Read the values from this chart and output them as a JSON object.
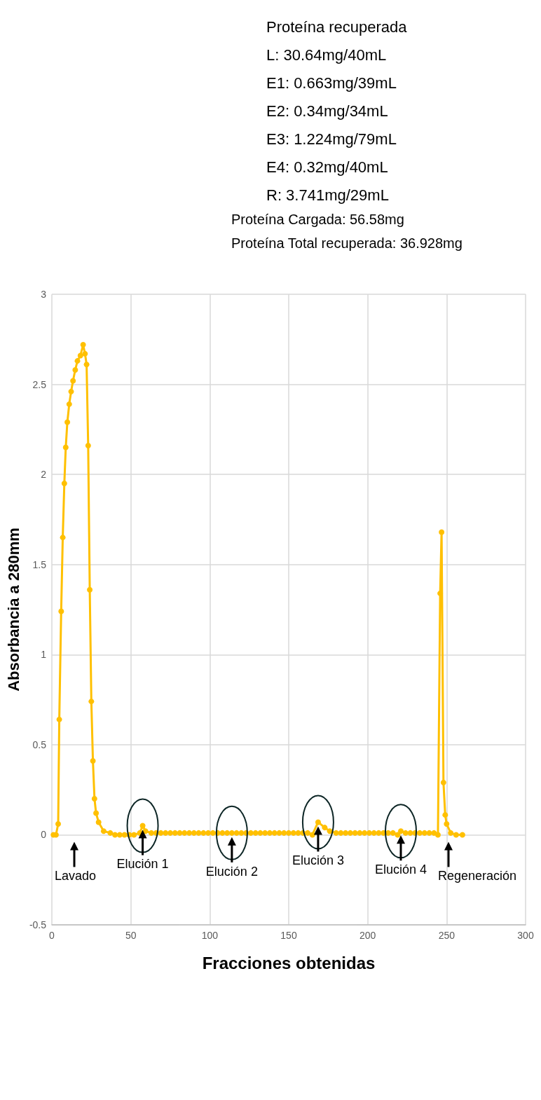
{
  "chart_data": {
    "type": "line",
    "xlabel": "Fracciones obtenidas",
    "ylabel": "Absorbancia a 280mm",
    "x": [
      1,
      2.6,
      4,
      4.7,
      5.9,
      6.9,
      7.9,
      8.8,
      9.8,
      11,
      12.2,
      13.4,
      14.8,
      16.2,
      18.1,
      19.8,
      21,
      22,
      23,
      24,
      25,
      26,
      27,
      28,
      29.6,
      32.8,
      37,
      40,
      43,
      46,
      49,
      52,
      55.7,
      57.5,
      59.3,
      63,
      66,
      69,
      72,
      75,
      78,
      81,
      84,
      87,
      90,
      93,
      96,
      99,
      102,
      105,
      108,
      111,
      114,
      117,
      120,
      123,
      126,
      129,
      132,
      135,
      138,
      141,
      144,
      147,
      150,
      153,
      156,
      159,
      162,
      165,
      168.6,
      172.8,
      176,
      180,
      183,
      186,
      189,
      192,
      195,
      198,
      201,
      204,
      207,
      210,
      213,
      216,
      219,
      221,
      224,
      227,
      230,
      233,
      236,
      239,
      242,
      244.5,
      245.9,
      246.8,
      248,
      249.1,
      250,
      252.6,
      256,
      260
    ],
    "series": [
      {
        "color": "#ffc000",
        "values": [
          0,
          0,
          0.06,
          0.64,
          1.24,
          1.65,
          1.95,
          2.15,
          2.29,
          2.39,
          2.46,
          2.52,
          2.58,
          2.63,
          2.66,
          2.72,
          2.67,
          2.61,
          2.16,
          1.36,
          0.74,
          0.41,
          0.2,
          0.12,
          0.07,
          0.02,
          0.01,
          0,
          0,
          0,
          0,
          0,
          0.01,
          0.05,
          0.02,
          0.01,
          0.01,
          0.01,
          0.01,
          0.01,
          0.01,
          0.01,
          0.01,
          0.01,
          0.01,
          0.01,
          0.01,
          0.01,
          0.01,
          0.01,
          0.01,
          0.01,
          0.01,
          0.01,
          0.01,
          0.01,
          0.01,
          0.01,
          0.01,
          0.01,
          0.01,
          0.01,
          0.01,
          0.01,
          0.01,
          0.01,
          0.01,
          0.01,
          0.01,
          0,
          0.07,
          0.04,
          0.02,
          0.01,
          0.01,
          0.01,
          0.01,
          0.01,
          0.01,
          0.01,
          0.01,
          0.01,
          0.01,
          0.01,
          0.01,
          0.01,
          0,
          0.02,
          0.01,
          0.01,
          0.01,
          0.01,
          0.01,
          0.01,
          0.01,
          0,
          1.34,
          1.68,
          0.29,
          0.11,
          0.06,
          0.01,
          0,
          0
        ]
      }
    ],
    "xlim": [
      0,
      300
    ],
    "xticks": [
      0,
      50,
      100,
      150,
      200,
      250,
      300
    ],
    "ylim": [
      -0.5,
      3
    ],
    "yticks": [
      -0.5,
      0,
      0.5,
      1,
      1.5,
      2,
      2.5,
      3
    ],
    "grid": true,
    "marker": "circle",
    "line_style": "solid",
    "annotations": [
      "Proteína recuperada",
      "L: 30.64mg/40mL",
      "E1: 0.663mg/39mL",
      "E2: 0.34mg/34mL",
      "E3: 1.224mg/79mL",
      "E4: 0.32mg/40mL",
      "R: 3.741mg/29mL",
      "Proteína Cargada: 56.58mg",
      "Proteína Total recuperada: 36.928mg",
      "Lavado",
      {
        "text": "Elución 1",
        "x": 57.5,
        "y": 0.05
      },
      {
        "text": "Elución 2",
        "x": 114,
        "y": 0.01
      },
      {
        "text": "Elución 3",
        "x": 168.6,
        "y": 0.07
      },
      {
        "text": "Elución 4",
        "x": 221,
        "y": 0.02
      },
      "Regeneración"
    ]
  }
}
